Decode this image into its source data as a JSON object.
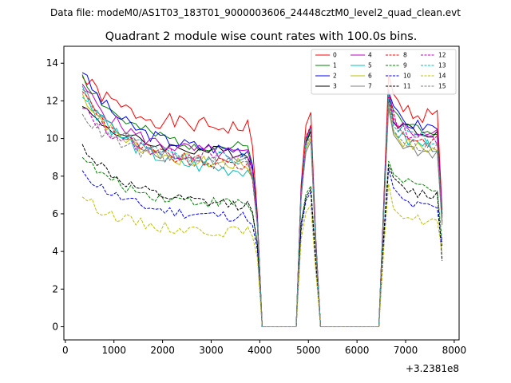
{
  "chart_data": {
    "type": "line",
    "suptitle": "Data file: modeM0/AS1T03_183T01_9000003606_24448cztM0_level2_quad_clean.evt",
    "title": "Quadrant 2 module wise count rates with 100.0s bins.",
    "xlabel": "",
    "ylabel": "",
    "offset_text": "+3.2381e8",
    "xlim": [
      -30,
      8100
    ],
    "ylim": [
      -0.7,
      14.9
    ],
    "x_ticks": [
      0,
      1000,
      2000,
      3000,
      4000,
      5000,
      6000,
      7000,
      8000
    ],
    "x_tick_labels": [
      "0",
      "1000",
      "2000",
      "3000",
      "4000",
      "5000",
      "6000",
      "7000",
      "8000"
    ],
    "y_ticks": [
      0,
      2,
      4,
      6,
      8,
      10,
      12,
      14
    ],
    "y_tick_labels": [
      "0",
      "2",
      "4",
      "6",
      "8",
      "10",
      "12",
      "14"
    ],
    "legend_loc": "upper right",
    "legend_cols": 4,
    "colors": {
      "0": "#ff0000",
      "1": "#008000",
      "2": "#0000ff",
      "3": "#000000",
      "4": "#bf00bf",
      "5": "#00bfbf",
      "6": "#bfbf00",
      "7": "#808080",
      "8": "#ff0000",
      "9": "#008000",
      "10": "#0000ff",
      "11": "#000000",
      "12": "#bf00bf",
      "13": "#00bfbf",
      "14": "#bfbf00",
      "15": "#808080"
    },
    "segments": [
      {
        "x_start": 350,
        "x_end": 3950,
        "step": 100,
        "shape": "decay"
      },
      {
        "x_start": 4050,
        "x_end": 4750,
        "step": 100,
        "shape": "zero"
      },
      {
        "x_start": 4850,
        "x_end": 5150,
        "step": 100,
        "shape": "ramp"
      },
      {
        "x_start": 5250,
        "x_end": 6450,
        "step": 100,
        "shape": "zero"
      },
      {
        "x_start": 6550,
        "x_end": 7750,
        "step": 100,
        "shape": "decay2"
      }
    ],
    "series": [
      {
        "name": "0",
        "dashed": false,
        "start": 13.3,
        "end": 10.5,
        "tail": 9.6,
        "wobble": 0.45,
        "end_drop": 6.0,
        "peak2": 13.4,
        "mid2": 11.2,
        "last2": 6.2,
        "seed": 1
      },
      {
        "name": "1",
        "dashed": false,
        "start": 13.4,
        "end": 9.4,
        "tail": 8.6,
        "wobble": 0.35,
        "end_drop": 5.8,
        "peak2": 12.3,
        "mid2": 10.5,
        "last2": 6.0,
        "seed": 2
      },
      {
        "name": "2",
        "dashed": false,
        "start": 13.5,
        "end": 9.3,
        "tail": 8.6,
        "wobble": 0.35,
        "end_drop": 5.8,
        "peak2": 12.5,
        "mid2": 10.6,
        "last2": 6.0,
        "seed": 3
      },
      {
        "name": "3",
        "dashed": false,
        "start": 11.7,
        "end": 9.2,
        "tail": 8.4,
        "wobble": 0.3,
        "end_drop": 5.6,
        "peak2": 12.2,
        "mid2": 10.3,
        "last2": 5.8,
        "seed": 4
      },
      {
        "name": "4",
        "dashed": false,
        "start": 12.9,
        "end": 9.1,
        "tail": 8.3,
        "wobble": 0.35,
        "end_drop": 5.7,
        "peak2": 12.4,
        "mid2": 10.2,
        "last2": 5.9,
        "seed": 5
      },
      {
        "name": "5",
        "dashed": false,
        "start": 12.8,
        "end": 8.2,
        "tail": 7.9,
        "wobble": 0.4,
        "end_drop": 5.5,
        "peak2": 11.8,
        "mid2": 9.6,
        "last2": 5.6,
        "seed": 6
      },
      {
        "name": "6",
        "dashed": false,
        "start": 12.4,
        "end": 8.5,
        "tail": 7.9,
        "wobble": 0.35,
        "end_drop": 5.5,
        "peak2": 11.8,
        "mid2": 9.4,
        "last2": 5.5,
        "seed": 7
      },
      {
        "name": "7",
        "dashed": false,
        "start": 12.6,
        "end": 8.6,
        "tail": 7.9,
        "wobble": 0.35,
        "end_drop": 5.5,
        "peak2": 11.6,
        "mid2": 9.2,
        "last2": 5.4,
        "seed": 8
      },
      {
        "name": "8",
        "dashed": true,
        "start": 12.5,
        "end": 8.5,
        "tail": 7.8,
        "wobble": 0.35,
        "end_drop": 5.4,
        "peak2": 12.6,
        "mid2": 9.8,
        "last2": 5.6,
        "seed": 9
      },
      {
        "name": "9",
        "dashed": true,
        "start": 9.0,
        "end": 6.5,
        "tail": 6.0,
        "wobble": 0.3,
        "end_drop": 4.4,
        "peak2": 8.8,
        "mid2": 7.4,
        "last2": 4.5,
        "seed": 10
      },
      {
        "name": "10",
        "dashed": true,
        "start": 8.3,
        "end": 5.8,
        "tail": 5.4,
        "wobble": 0.3,
        "end_drop": 4.1,
        "peak2": 8.4,
        "mid2": 6.3,
        "last2": 4.3,
        "seed": 11
      },
      {
        "name": "11",
        "dashed": true,
        "start": 9.7,
        "end": 6.4,
        "tail": 6.1,
        "wobble": 0.3,
        "end_drop": 4.4,
        "peak2": 8.6,
        "mid2": 7.0,
        "last2": 3.5,
        "seed": 12
      },
      {
        "name": "12",
        "dashed": true,
        "start": 11.6,
        "end": 8.9,
        "tail": 8.3,
        "wobble": 0.35,
        "end_drop": 5.5,
        "peak2": 12.5,
        "mid2": 10.0,
        "last2": 5.6,
        "seed": 13
      },
      {
        "name": "13",
        "dashed": true,
        "start": 12.2,
        "end": 8.8,
        "tail": 8.1,
        "wobble": 0.35,
        "end_drop": 5.5,
        "peak2": 12.4,
        "mid2": 9.9,
        "last2": 5.6,
        "seed": 14
      },
      {
        "name": "14",
        "dashed": true,
        "start": 6.9,
        "end": 5.0,
        "tail": 4.8,
        "wobble": 0.3,
        "end_drop": 3.7,
        "peak2": 7.6,
        "mid2": 5.6,
        "last2": 4.0,
        "seed": 15
      },
      {
        "name": "15",
        "dashed": true,
        "start": 11.3,
        "end": 8.6,
        "tail": 7.9,
        "wobble": 0.35,
        "end_drop": 5.4,
        "peak2": 12.0,
        "mid2": 9.5,
        "last2": 5.5,
        "seed": 16
      }
    ]
  }
}
